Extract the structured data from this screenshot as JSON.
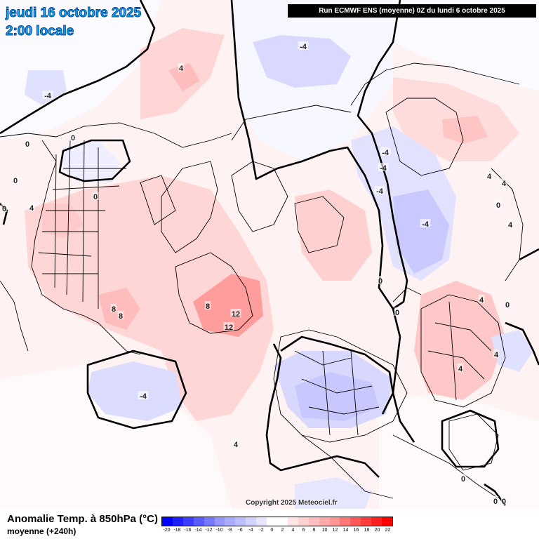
{
  "header": {
    "date_line": "jeudi 16 octobre 2025",
    "time_line": "2:00 locale",
    "run_info": "Run ECMWF ENS (moyenne) 0Z du lundi 6 octobre 2025"
  },
  "copyright": "Copyright 2025 Meteociel.fr",
  "legend": {
    "title": "Anomalie Temp. à 850hPa (°C)",
    "subtitle": "moyenne   (+240h)",
    "scale_labels": [
      "-20",
      "-18",
      "-16",
      "-14",
      "-12",
      "-10",
      "-8",
      "-6",
      "-4",
      "-2",
      "0",
      "2",
      "4",
      "6",
      "8",
      "10",
      "12",
      "14",
      "16",
      "18",
      "20",
      "22"
    ],
    "scale_colors": [
      "#0000ff",
      "#1e1eff",
      "#3c3cff",
      "#5a5aff",
      "#7878ff",
      "#9696ff",
      "#aaaaff",
      "#bebeff",
      "#d2d2ff",
      "#e6e6ff",
      "#ffffff",
      "#ffffff",
      "#ffe6e6",
      "#ffd2d2",
      "#ffbebe",
      "#ffaaaa",
      "#ff9696",
      "#ff7878",
      "#ff5a5a",
      "#ff3c3c",
      "#ff1e1e",
      "#ff0000"
    ]
  },
  "contour_labels": [
    {
      "text": "4",
      "pos": "north-pacific"
    },
    {
      "text": "-4",
      "pos": "siberia-north"
    },
    {
      "text": "-4",
      "pos": "alaska-west"
    },
    {
      "text": "0",
      "pos": "canada-north"
    },
    {
      "text": "0",
      "pos": "canada-west"
    },
    {
      "text": "4",
      "pos": "usa-west"
    },
    {
      "text": "0",
      "pos": "usa-north"
    },
    {
      "text": "8",
      "pos": "gulf"
    },
    {
      "text": "8",
      "pos": "florida"
    },
    {
      "text": "8",
      "pos": "greenland-west"
    },
    {
      "text": "12",
      "pos": "greenland-center"
    },
    {
      "text": "12",
      "pos": "greenland-south"
    },
    {
      "text": "-4",
      "pos": "atlantic"
    },
    {
      "text": "-4",
      "pos": "russia"
    },
    {
      "text": "-4",
      "pos": "russia-2"
    },
    {
      "text": "-4",
      "pos": "russia-3"
    },
    {
      "text": "-4",
      "pos": "europe"
    },
    {
      "text": "0",
      "pos": "russia-south"
    },
    {
      "text": "0",
      "pos": "caspian"
    },
    {
      "text": "4",
      "pos": "china"
    },
    {
      "text": "4",
      "pos": "japan"
    },
    {
      "text": "4",
      "pos": "asia-east"
    },
    {
      "text": "4",
      "pos": "asia-east-2"
    },
    {
      "text": "4",
      "pos": "asia-southeast"
    },
    {
      "text": "0",
      "pos": "asia-east-3"
    },
    {
      "text": "4",
      "pos": "asia-south"
    },
    {
      "text": "0",
      "pos": "india"
    },
    {
      "text": "4",
      "pos": "mediterranean"
    },
    {
      "text": "0",
      "pos": "sahara"
    },
    {
      "text": "0",
      "pos": "africa"
    },
    {
      "text": "0",
      "pos": "pacific-east"
    },
    {
      "text": "0",
      "pos": "pacific-east-2"
    },
    {
      "text": "0",
      "pos": "pacific-south"
    }
  ]
}
